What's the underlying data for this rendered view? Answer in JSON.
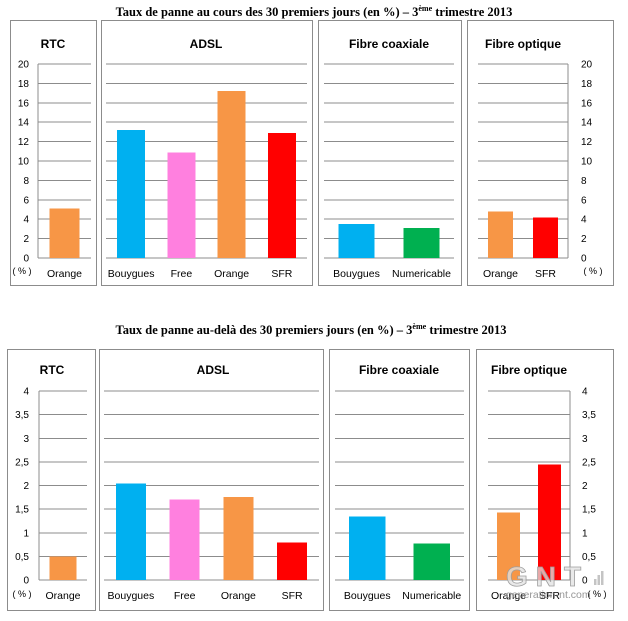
{
  "colors": {
    "Bouygues": "#00B0F0",
    "Free": "#FF80DF",
    "Orange": "#F79646",
    "SFR": "#FF0000",
    "Numericable": "#00B050"
  },
  "chart_data": [
    {
      "type": "bar",
      "title": {
        "prefix": "Taux de panne au cours des 30 premiers jours (en %) – 3",
        "sup": "ème",
        "suffix": " trimestre 2013"
      },
      "ylabel": "( % )",
      "ylim": [
        0,
        20
      ],
      "yticks": [
        "0",
        "2",
        "4",
        "6",
        "8",
        "10",
        "12",
        "14",
        "16",
        "18",
        "20"
      ],
      "grid": true,
      "panels": [
        {
          "title": "RTC",
          "axis": "left",
          "categories": [
            "Orange"
          ],
          "values": [
            5.1
          ]
        },
        {
          "title": "ADSL",
          "categories": [
            "Bouygues",
            "Free",
            "Orange",
            "SFR"
          ],
          "values": [
            13.2,
            10.9,
            17.2,
            12.9
          ]
        },
        {
          "title": "Fibre coaxiale",
          "categories": [
            "Bouygues",
            "Numericable"
          ],
          "values": [
            3.5,
            3.1
          ]
        },
        {
          "title": "Fibre optique",
          "axis": "right",
          "categories": [
            "Orange",
            "SFR"
          ],
          "values": [
            4.8,
            4.2
          ]
        }
      ]
    },
    {
      "type": "bar",
      "title": {
        "prefix": "Taux de panne au-delà des 30 premiers jours (en %) – 3",
        "sup": "ème",
        "suffix": " trimestre 2013"
      },
      "ylabel": "( % )",
      "ylim": [
        0,
        4
      ],
      "yticks": [
        "0",
        "0,5",
        "1",
        "1,5",
        "2",
        "2,5",
        "3",
        "3,5",
        "4"
      ],
      "grid": true,
      "panels": [
        {
          "title": "RTC",
          "axis": "left",
          "categories": [
            "Orange"
          ],
          "values": [
            0.5
          ]
        },
        {
          "title": "ADSL",
          "categories": [
            "Bouygues",
            "Free",
            "Orange",
            "SFR"
          ],
          "values": [
            2.04,
            1.7,
            1.76,
            0.79
          ]
        },
        {
          "title": "Fibre coaxiale",
          "categories": [
            "Bouygues",
            "Numericable"
          ],
          "values": [
            1.34,
            0.77
          ]
        },
        {
          "title": "Fibre optique",
          "axis": "right",
          "categories": [
            "Orange",
            "SFR"
          ],
          "values": [
            1.43,
            2.44
          ]
        }
      ]
    }
  ],
  "watermark": {
    "logo": "GNT",
    "site": "generation-nt.com"
  }
}
